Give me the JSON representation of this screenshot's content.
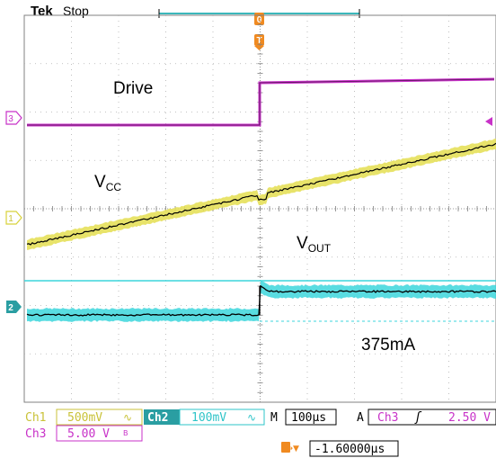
{
  "header": {
    "brand": "Tek",
    "run_state": "Stop",
    "trigger_marker": "T",
    "trigger_position_marker": "0"
  },
  "channels": {
    "ch1": {
      "marker": "1",
      "label": "Ch1",
      "scale": "500mV",
      "coupling_symbol": "∿",
      "color": "#d8d23a"
    },
    "ch2": {
      "marker": "2",
      "label": "Ch2",
      "scale": "100mV",
      "coupling_symbol": "∿",
      "color": "#2ec4c8"
    },
    "ch3": {
      "marker": "3",
      "label": "Ch3",
      "scale": "5.00 V",
      "bw_symbol": "B",
      "color": "#c832c8"
    }
  },
  "annotations": {
    "drive": "Drive",
    "vcc_main": "V",
    "vcc_sub": "CC",
    "vout_main": "V",
    "vout_sub": "OUT",
    "current": "375mA"
  },
  "status": {
    "timebase_prefix": "M",
    "timebase": "100µs",
    "trigger_mode": "A",
    "trigger_source": "Ch3",
    "trigger_slope": "ʃ",
    "trigger_level": "2.50 V",
    "trigger_offset_icon": "T→▼",
    "trigger_offset": "-1.60000µs"
  },
  "colors": {
    "grid": "#b0b0b0",
    "grid_major": "#808080",
    "ch1": "#e6e05a",
    "ch2": "#3cd6dc",
    "ch3": "#c832c8",
    "trace_core": "#000000",
    "trigger_orange": "#f08a20",
    "readout_bg": "#ffffff"
  }
}
